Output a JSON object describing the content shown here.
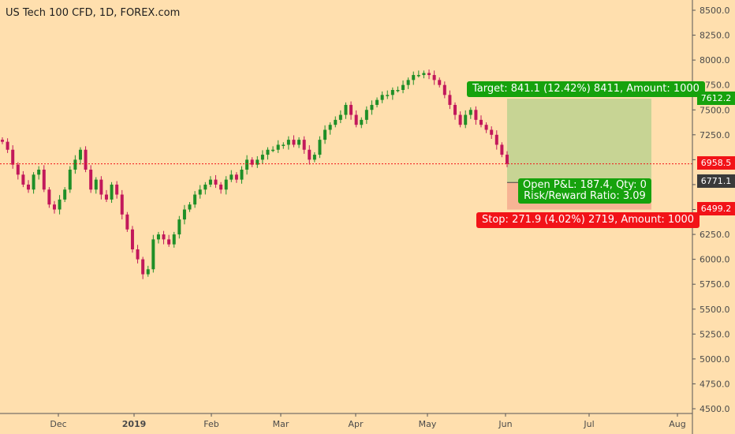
{
  "title": "US Tech 100 CFD, 1D, FOREX.com",
  "colors": {
    "background": "#ffdfae",
    "up_candle": "#1f8f27",
    "down_candle": "#c2185b",
    "target_zone": "#c7d494",
    "stop_zone": "#f7b494",
    "entry_line": "#f21318",
    "axis_text": "#4a4a4a"
  },
  "chart_data": {
    "type": "candlestick",
    "title": "US Tech 100 CFD, 1D, FOREX.com",
    "y_axis": {
      "ticks": [
        "8500.0",
        "8250.0",
        "8000.0",
        "7750.0",
        "7500.0",
        "7250.0",
        "7000.0",
        "6750.0",
        "6500.0",
        "6250.0",
        "6000.0",
        "5750.0",
        "5500.0",
        "5250.0",
        "5000.0",
        "4750.0",
        "4500.0"
      ],
      "range": [
        4500,
        8550
      ]
    },
    "x_axis": {
      "ticks": [
        "Dec",
        "2019",
        "Feb",
        "Mar",
        "Apr",
        "May",
        "Jun",
        "Jul",
        "Aug"
      ]
    },
    "price_labels": {
      "target": "7612.2",
      "last": "6958.5",
      "entry": "6771.1",
      "stop": "6499.2"
    },
    "position": {
      "target_text": "Target: 841.1 (12.42%) 8411, Amount: 1000",
      "stop_text": "Stop: 271.9 (4.02%) 2719, Amount: 1000",
      "pnl_text": "Open P&L: 187.4, Qty: 0",
      "rr_text": "Risk/Reward Ratio: 3.09"
    },
    "price_path": [
      7180,
      7100,
      6950,
      6850,
      6750,
      6700,
      6850,
      6900,
      6700,
      6550,
      6500,
      6600,
      6700,
      6900,
      7000,
      7100,
      6900,
      6700,
      6800,
      6650,
      6600,
      6750,
      6650,
      6450,
      6300,
      6100,
      6000,
      5850,
      5900,
      6200,
      6250,
      6200,
      6150,
      6250,
      6400,
      6500,
      6550,
      6650,
      6700,
      6750,
      6800,
      6750,
      6700,
      6800,
      6850,
      6800,
      6900,
      7000,
      6950,
      7000,
      7050,
      7100,
      7100,
      7150,
      7150,
      7200,
      7150,
      7200,
      7100,
      7000,
      7050,
      7200,
      7300,
      7350,
      7400,
      7450,
      7550,
      7450,
      7350,
      7400,
      7500,
      7550,
      7600,
      7650,
      7650,
      7700,
      7700,
      7750,
      7800,
      7850,
      7850,
      7870,
      7850,
      7800,
      7750,
      7650,
      7550,
      7450,
      7350,
      7450,
      7500,
      7400,
      7350,
      7300,
      7250,
      7150,
      7050,
      6958
    ]
  }
}
